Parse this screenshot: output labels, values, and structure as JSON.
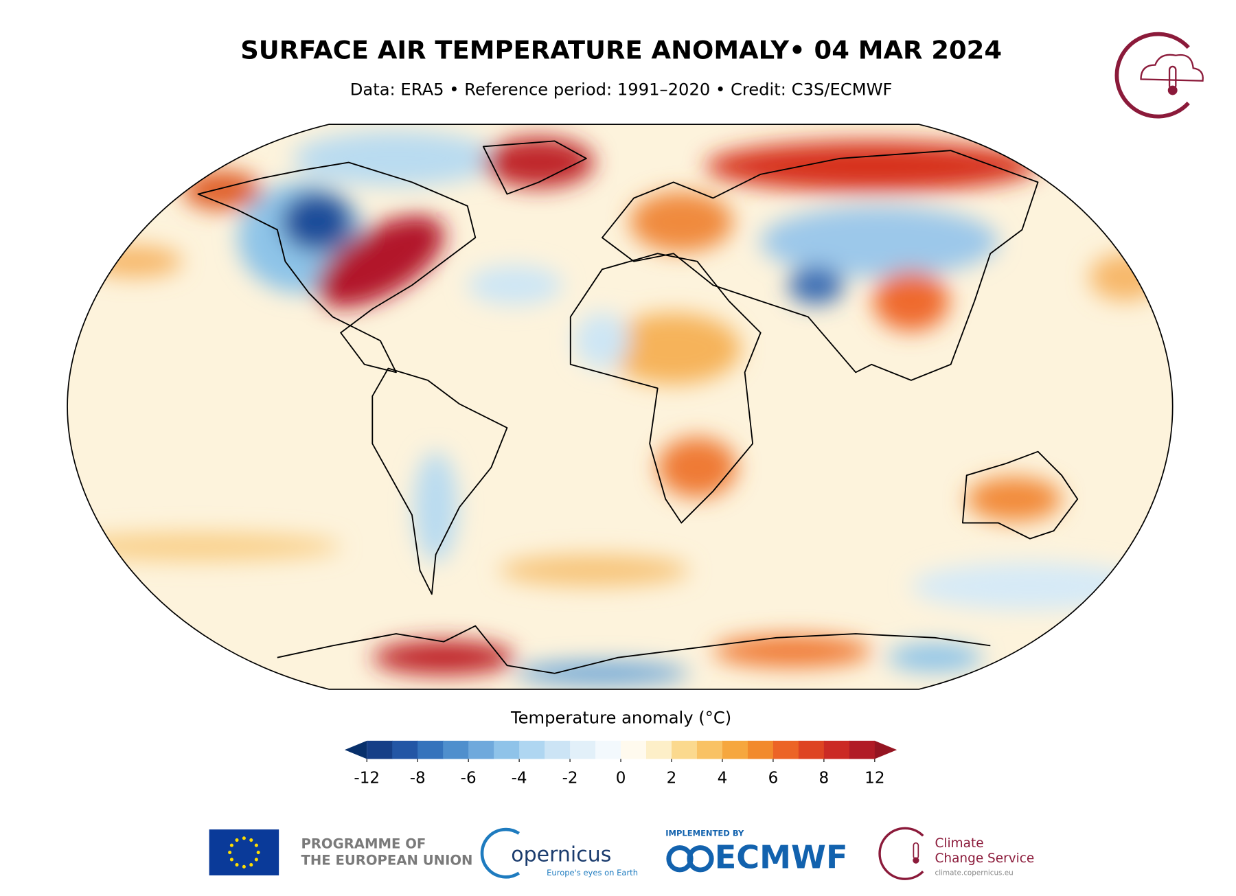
{
  "header": {
    "title": "SURFACE AIR TEMPERATURE ANOMALY• 04 MAR 2024",
    "subtitle": "Data: ERA5 • Reference period: 1991–2020 • Credit: C3S/ECMWF"
  },
  "colorbar": {
    "label": "Temperature anomaly (°C)",
    "levels": [
      -12,
      -10,
      -8,
      -7,
      -6,
      -5,
      -4,
      -3,
      -2,
      -1,
      0,
      1,
      2,
      3,
      4,
      5,
      6,
      7,
      8,
      10,
      12
    ],
    "colors": [
      "#08306b",
      "#163f87",
      "#2356a5",
      "#3573bc",
      "#4f8fcd",
      "#6fa9dc",
      "#8fc3e9",
      "#afd6f1",
      "#cce4f5",
      "#e2f0f9",
      "#f3f9fd",
      "#fffaee",
      "#fdefc8",
      "#fbd98e",
      "#f9c264",
      "#f6a73e",
      "#f28a2c",
      "#ec6426",
      "#de4423",
      "#cb2a25",
      "#b11b26",
      "#951522"
    ],
    "ticks": [
      -12,
      -8,
      -6,
      -4,
      -2,
      0,
      2,
      4,
      6,
      8,
      12
    ]
  },
  "footer": {
    "eu": [
      "PROGRAMME OF",
      "THE EUROPEAN UNION"
    ],
    "copernicus": {
      "name": "opernicus",
      "tagline": "Europe's eyes on Earth"
    },
    "ecmwf": {
      "note": "IMPLEMENTED BY",
      "name": "ECMWF"
    },
    "c3s": {
      "lines": [
        "Climate",
        "Change Service"
      ],
      "url": "climate.copernicus.eu"
    }
  }
}
